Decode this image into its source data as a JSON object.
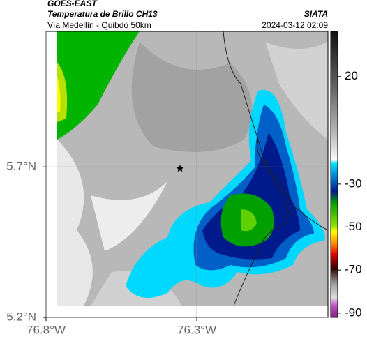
{
  "header": {
    "title": "GOES-EAST",
    "subtitle": "Temperatura de Brillo CH13",
    "location": "Vía Medellín - Quibdó 50km",
    "source": "SIATA",
    "timestamp": "2024-03-12 02:09"
  },
  "map": {
    "xlim": [
      -76.8,
      -75.865
    ],
    "ylim": [
      5.2,
      6.15
    ],
    "xticks": [
      {
        "value": -76.8,
        "label": "76.8°W"
      },
      {
        "value": -76.3,
        "label": "76.3°W"
      }
    ],
    "yticks": [
      {
        "value": 5.7,
        "label": "5.7°N"
      },
      {
        "value": 5.2,
        "label": "5.2°N"
      }
    ]
  },
  "colorbar": {
    "lim": [
      -92,
      41
    ],
    "ticks": [
      20,
      -30,
      -50,
      -70,
      -90
    ]
  }
}
